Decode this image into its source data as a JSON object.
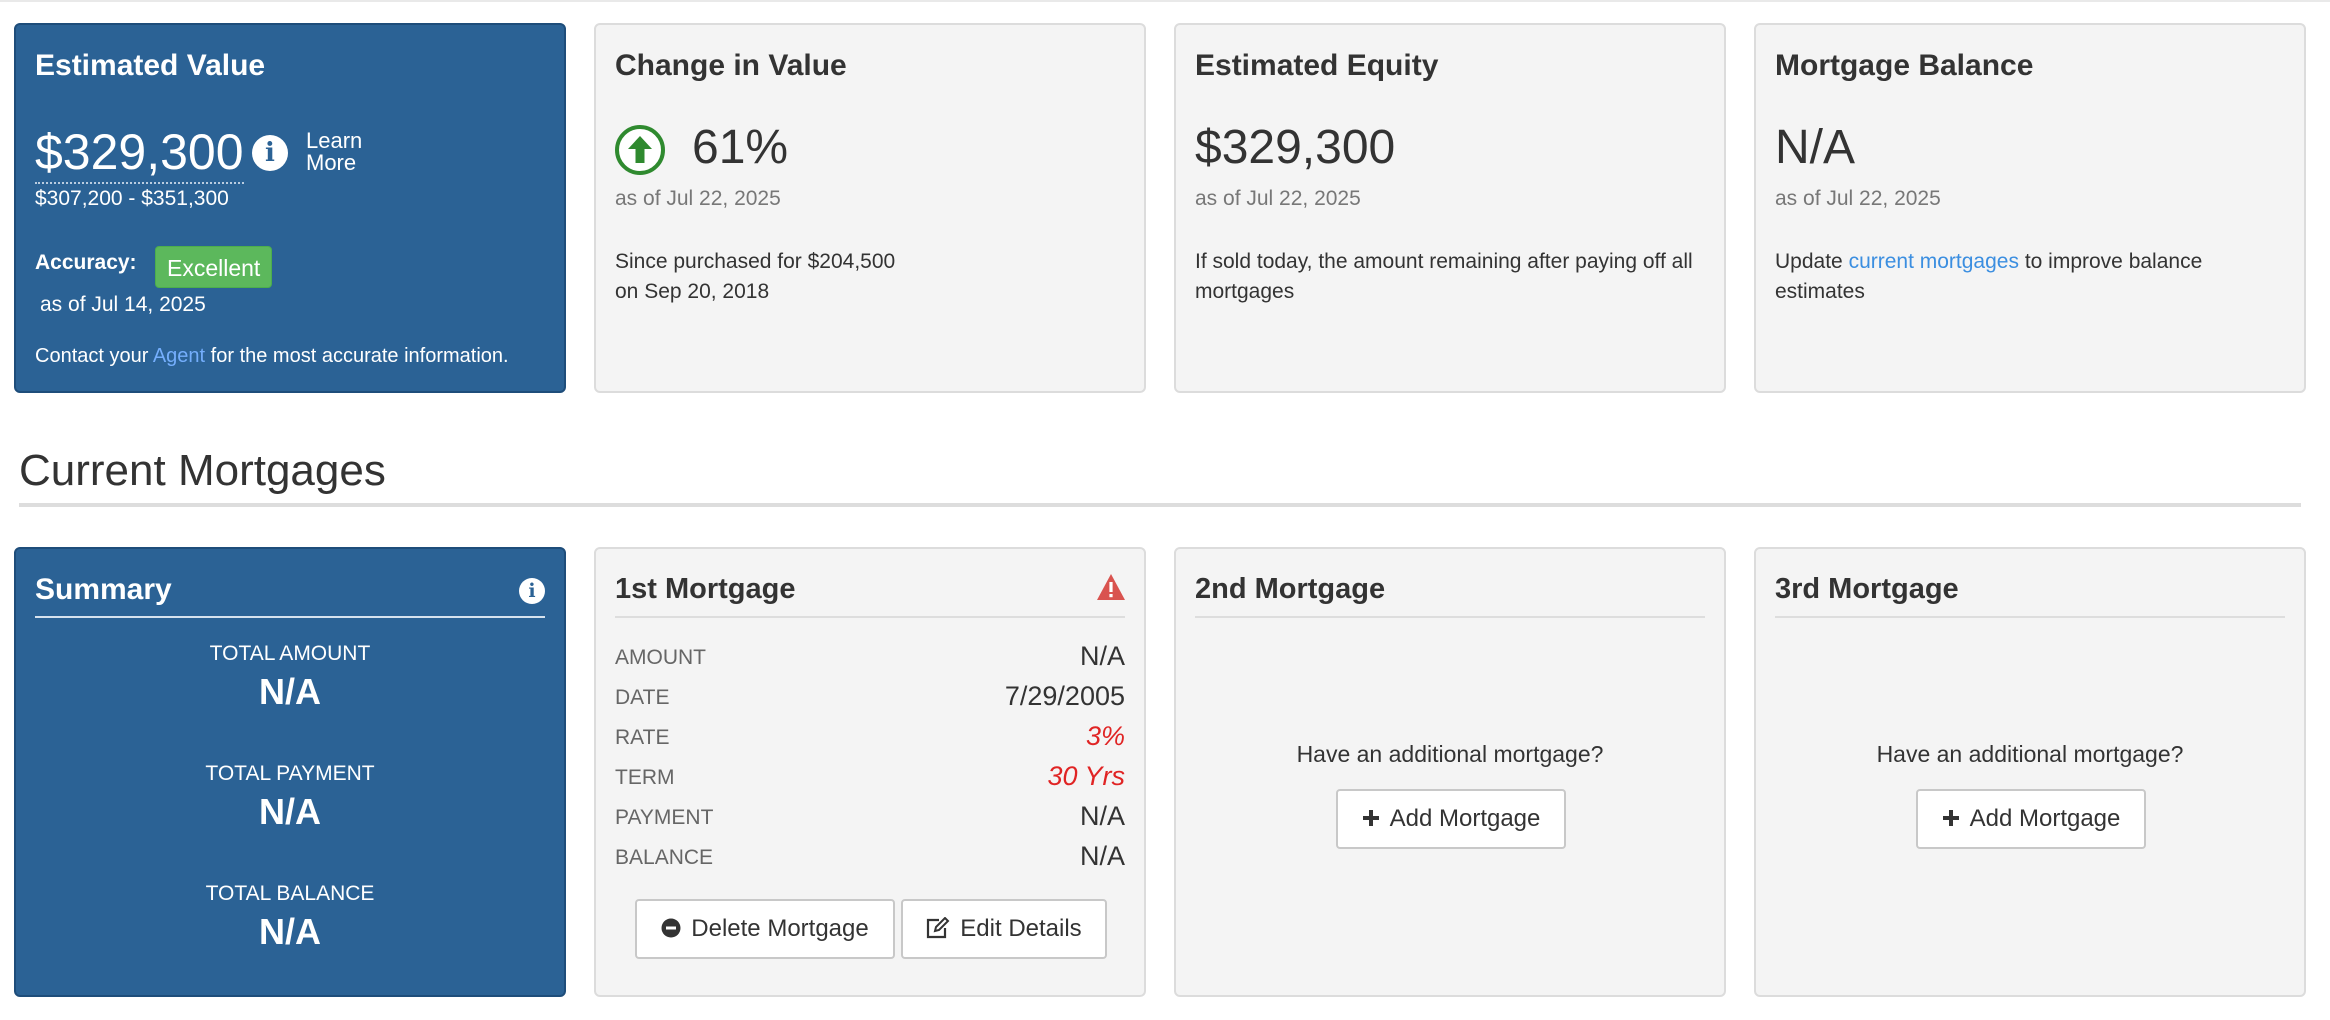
{
  "estimated_value": {
    "title": "Estimated Value",
    "value": "$329,300",
    "learn_more": "Learn More",
    "range": "$307,200 - $351,300",
    "accuracy_label": "Accuracy:",
    "accuracy_badge": "Excellent",
    "as_of": "as of Jul 14, 2025",
    "contact_prefix": "Contact your",
    "contact_link": "Agent",
    "contact_suffix": "for the most accurate information."
  },
  "change_in_value": {
    "title": "Change in Value",
    "value": "61%",
    "as_of": "as of Jul 22, 2025",
    "desc_line1": "Since purchased for $204,500",
    "desc_line2": "on Sep 20, 2018"
  },
  "estimated_equity": {
    "title": "Estimated Equity",
    "value": "$329,300",
    "as_of": "as of Jul 22, 2025",
    "desc": "If sold today, the amount remaining after paying off all mortgages"
  },
  "mortgage_balance": {
    "title": "Mortgage Balance",
    "value": "N/A",
    "as_of": "as of Jul 22, 2025",
    "desc_prefix": "Update",
    "desc_link": "current mortgages",
    "desc_suffix": "to improve balance estimates"
  },
  "section": {
    "title": "Current Mortgages"
  },
  "summary": {
    "title": "Summary",
    "total_amount_label": "TOTAL AMOUNT",
    "total_amount": "N/A",
    "total_payment_label": "TOTAL PAYMENT",
    "total_payment": "N/A",
    "total_balance_label": "TOTAL BALANCE",
    "total_balance": "N/A"
  },
  "mortgage1": {
    "title": "1st Mortgage",
    "rows": [
      {
        "label": "AMOUNT",
        "value": "N/A"
      },
      {
        "label": "DATE",
        "value": "7/29/2005"
      },
      {
        "label": "RATE",
        "value": "3%"
      },
      {
        "label": "TERM",
        "value": "30 Yrs"
      },
      {
        "label": "PAYMENT",
        "value": "N/A"
      },
      {
        "label": "BALANCE",
        "value": "N/A"
      }
    ],
    "delete_label": "Delete Mortgage",
    "edit_label": "Edit Details"
  },
  "mortgage2": {
    "title": "2nd Mortgage",
    "prompt": "Have an additional mortgage?",
    "add_label": "Add Mortgage"
  },
  "mortgage3": {
    "title": "3rd Mortgage",
    "prompt": "Have an additional mortgage?",
    "add_label": "Add Mortgage"
  },
  "colors": {
    "blue_card": "#2b6295",
    "excellent_badge": "#5cb85c",
    "up_arrow": "#2f8a2f",
    "warning_icon": "#d9534f",
    "highlight_red": "#e02424",
    "link": "#3b8ee0"
  },
  "icons": {
    "info": "info-circle-icon",
    "up_arrow": "arrow-up-circle-icon",
    "warning": "warning-triangle-icon",
    "delete": "minus-circle-icon",
    "edit": "edit-icon",
    "add": "plus-icon"
  }
}
